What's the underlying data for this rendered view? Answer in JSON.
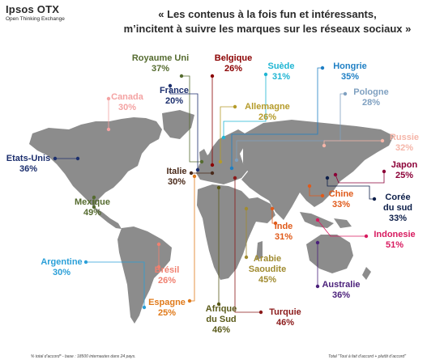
{
  "brand": {
    "name": "Ipsos OTX",
    "tagline": "Open Thinking Exchange"
  },
  "title": {
    "line1": "« Les contenus à la fois fun et intéressants,",
    "line2": "m’incitent à suivre les marques sur les réseaux sociaux »"
  },
  "colors": {
    "map_land": "#8c8c8c",
    "text_dark": "#2a2a2a"
  },
  "countries": [
    {
      "key": "royaume_uni",
      "name": "Royaume Uni",
      "value": "37%",
      "color": "#556b2f"
    },
    {
      "key": "belgique",
      "name": "Belgique",
      "value": "26%",
      "color": "#8b0000"
    },
    {
      "key": "suede",
      "name": "Suède",
      "value": "31%",
      "color": "#1fb5d3"
    },
    {
      "key": "hongrie",
      "name": "Hongrie",
      "value": "35%",
      "color": "#1e7fc4"
    },
    {
      "key": "canada",
      "name": "Canada",
      "value": "30%",
      "color": "#f4a3a3"
    },
    {
      "key": "france",
      "name": "France",
      "value": "20%",
      "color": "#1c2f6e"
    },
    {
      "key": "pologne",
      "name": "Pologne",
      "value": "28%",
      "color": "#7fa0c0"
    },
    {
      "key": "allemagne",
      "name": "Allemagne",
      "value": "26%",
      "color": "#b59b2a"
    },
    {
      "key": "russie",
      "name": "Russie",
      "value": "32%",
      "color": "#f5b5a8"
    },
    {
      "key": "etats_unis",
      "name": "Etats-Unis",
      "value": "36%",
      "color": "#1c2f6e"
    },
    {
      "key": "italie",
      "name": "Italie",
      "value": "30%",
      "color": "#4a2a1a"
    },
    {
      "key": "japon",
      "name": "Japon",
      "value": "25%",
      "color": "#8b0037"
    },
    {
      "key": "mexique",
      "name": "Mexique",
      "value": "49%",
      "color": "#556b2f"
    },
    {
      "key": "chine",
      "name": "Chine",
      "value": "33%",
      "color": "#e05a1a"
    },
    {
      "key": "coree_du_sud",
      "name_line1": "Corée",
      "name_line2": "du sud",
      "value": "33%",
      "color": "#0d1f4a"
    },
    {
      "key": "inde",
      "name": "Inde",
      "value": "31%",
      "color": "#e05a1a"
    },
    {
      "key": "indonesie",
      "name": "Indonesie",
      "value": "51%",
      "color": "#d81b60"
    },
    {
      "key": "argentine",
      "name": "Argentine",
      "value": "30%",
      "color": "#2a9fd8"
    },
    {
      "key": "bresil",
      "name": "Brésil",
      "value": "26%",
      "color": "#f08070"
    },
    {
      "key": "arabie_saoudite",
      "name_line1": "Arabie",
      "name_line2": "Saoudite",
      "value": "45%",
      "color": "#a08b30"
    },
    {
      "key": "australie",
      "name": "Australie",
      "value": "36%",
      "color": "#4a1f7a"
    },
    {
      "key": "espagne",
      "name": "Espagne",
      "value": "25%",
      "color": "#e07a1a"
    },
    {
      "key": "afrique_du_sud",
      "name_line1": "Afrique",
      "name_line2": "du Sud",
      "value": "46%",
      "color": "#5a5a1a"
    },
    {
      "key": "turquie",
      "name": "Turquie",
      "value": "46%",
      "color": "#8b1a1a"
    }
  ],
  "footnotes": {
    "left": "% total d’accord* - base : 18500 internautes dans 24 pays.",
    "right": "Total \"Tout à fait d’accord + plutôt d’accord\""
  }
}
